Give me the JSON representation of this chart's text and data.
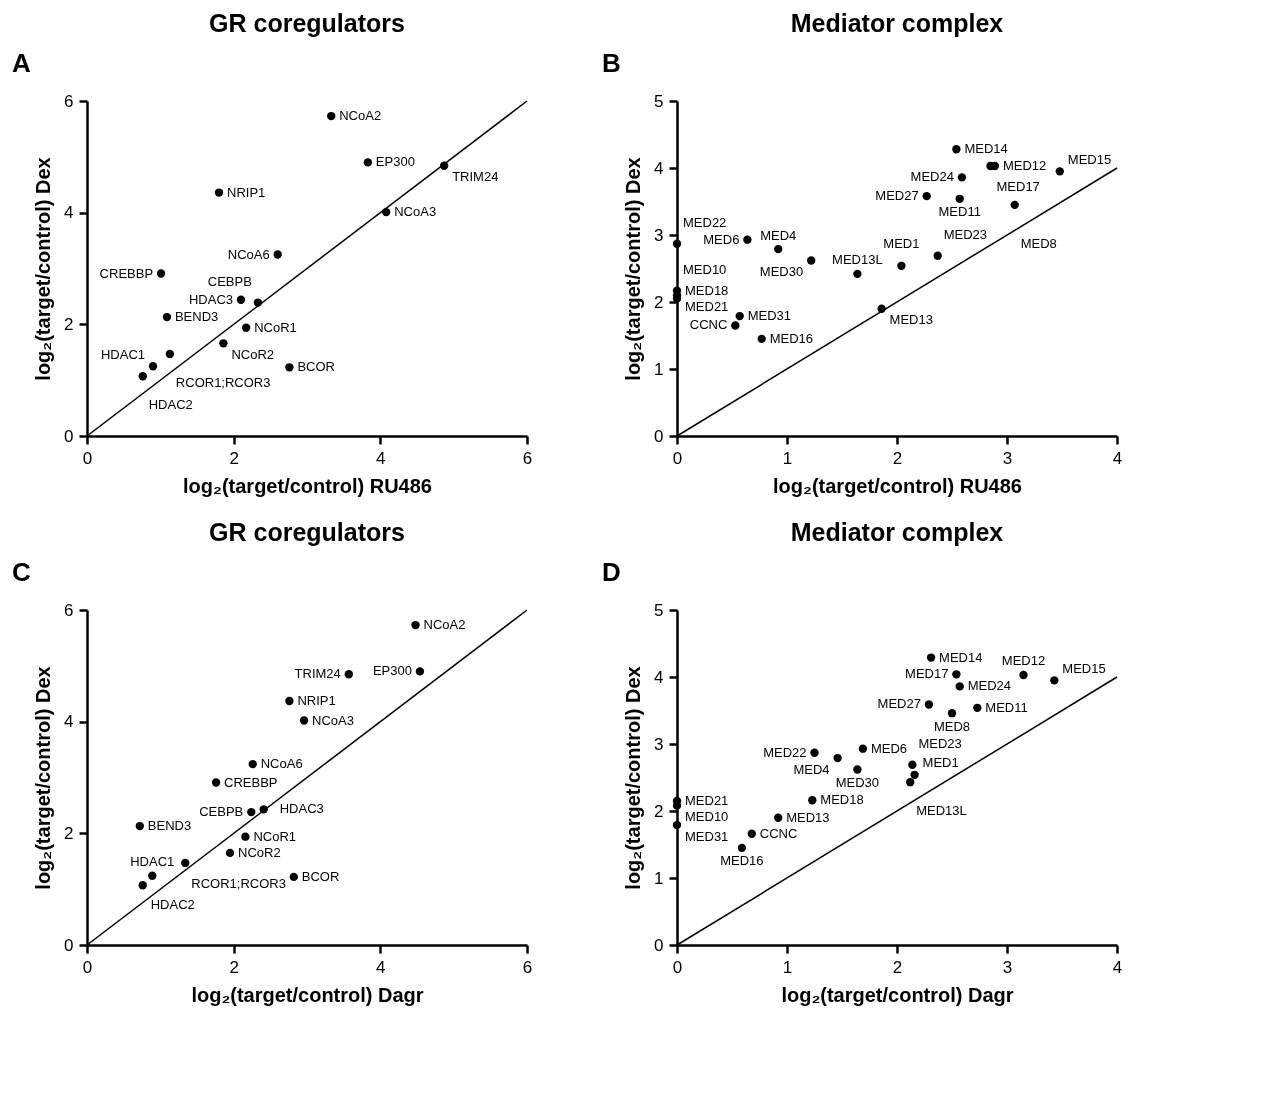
{
  "chart_data": [
    {
      "type": "scatter",
      "title": "GR coregulators",
      "annotations": [
        "A"
      ],
      "xlabel": "log₂(target/control) RU486",
      "ylabel": "log₂(target/control) Dex",
      "xlim": [
        0,
        6
      ],
      "ylim": [
        0,
        6
      ],
      "xticks": [
        0,
        2,
        4,
        6
      ],
      "yticks": [
        0,
        2,
        4,
        6
      ],
      "marker": "circle",
      "series": [
        {
          "color": "#000000",
          "x": [
            3.33,
            3.83,
            4.87,
            1.8,
            4.08,
            2.6,
            1.01,
            2.1,
            2.33,
            1.09,
            2.17,
            1.86,
            1.13,
            0.9,
            0.76,
            2.76
          ],
          "values": [
            5.73,
            4.9,
            4.84,
            4.36,
            4.01,
            3.25,
            2.91,
            2.44,
            2.39,
            2.13,
            1.94,
            1.66,
            1.47,
            1.25,
            1.07,
            1.23
          ],
          "value_labels": [
            "NCoA2",
            "EP300",
            "TRIM24",
            "NRIP1",
            "NCoA3",
            "NCoA6",
            "CREBBP",
            "HDAC3",
            "CEBPB",
            "BEND3",
            "NCoR1",
            "NCoR2",
            "RCOR1;RCOR3",
            "HDAC1",
            "HDAC2",
            "BCOR"
          ]
        },
        {
          "type": "line",
          "marker": "none",
          "color": "#000000",
          "x": [
            0,
            6
          ],
          "values": [
            0,
            6
          ]
        }
      ]
    },
    {
      "type": "scatter",
      "title": "Mediator complex",
      "annotations": [
        "B"
      ],
      "xlabel": "log₂(target/control) RU486",
      "ylabel": "log₂(target/control) Dex",
      "xlim": [
        0,
        4
      ],
      "ylim": [
        0,
        5
      ],
      "xticks": [
        0,
        1,
        2,
        3,
        4
      ],
      "yticks": [
        0,
        1,
        2,
        3,
        4,
        5
      ],
      "marker": "circle",
      "series": [
        {
          "color": "#000000",
          "x": [
            2.54,
            2.85,
            2.89,
            3.48,
            2.59,
            2.27,
            2.57,
            3.07,
            0,
            0.64,
            0.92,
            1.22,
            1.64,
            2.04,
            2.37,
            0,
            0,
            0,
            0.57,
            0.53,
            1.86,
            0.77
          ],
          "values": [
            4.28,
            4.03,
            4.03,
            3.95,
            3.86,
            3.58,
            3.54,
            3.45,
            2.87,
            2.93,
            2.79,
            2.62,
            2.42,
            2.54,
            2.69,
            2.17,
            2.1,
            2.05,
            1.79,
            1.65,
            1.9,
            1.45
          ],
          "value_labels": [
            "MED14",
            "MED17",
            "MED12",
            "MED15",
            "MED24",
            "MED27",
            "MED11",
            "MED8",
            "MED22",
            "MED6",
            "MED4",
            "MED30",
            "MED13L",
            "MED1",
            "MED23",
            "MED18",
            "MED21",
            "MED10",
            "MED31",
            "CCNC",
            "MED13",
            "MED16"
          ]
        },
        {
          "type": "line",
          "marker": "none",
          "color": "#000000",
          "x": [
            0,
            4
          ],
          "values": [
            0,
            4
          ]
        }
      ]
    },
    {
      "type": "scatter",
      "title": "GR coregulators",
      "annotations": [
        "C"
      ],
      "xlabel": "log₂(target/control) Dagr",
      "ylabel": "log₂(target/control) Dex",
      "xlim": [
        0,
        6
      ],
      "ylim": [
        0,
        6
      ],
      "xticks": [
        0,
        2,
        4,
        6
      ],
      "yticks": [
        0,
        2,
        4,
        6
      ],
      "marker": "circle",
      "series": [
        {
          "color": "#000000",
          "x": [
            4.48,
            4.54,
            3.57,
            2.76,
            2.96,
            2.26,
            1.76,
            2.24,
            2.41,
            0.72,
            2.16,
            1.95,
            1.34,
            0.89,
            0.76,
            2.82
          ],
          "values": [
            5.73,
            4.9,
            4.85,
            4.37,
            4.02,
            3.24,
            2.91,
            2.38,
            2.43,
            2.13,
            1.94,
            1.65,
            1.47,
            1.24,
            1.07,
            1.22
          ],
          "value_labels": [
            "NCoA2",
            "EP300",
            "TRIM24",
            "NRIP1",
            "NCoA3",
            "NCoA6",
            "CREBBP",
            "CEBPB",
            "HDAC3",
            "BEND3",
            "NCoR1",
            "NCoR2",
            "RCOR1;RCOR3",
            "HDAC1",
            "HDAC2",
            "BCOR"
          ]
        },
        {
          "type": "line",
          "marker": "none",
          "color": "#000000",
          "x": [
            0,
            6
          ],
          "values": [
            0,
            6
          ]
        }
      ]
    },
    {
      "type": "scatter",
      "title": "Mediator complex",
      "annotations": [
        "D"
      ],
      "xlabel": "log₂(target/control) Dagr",
      "ylabel": "log₂(target/control) Dex",
      "xlim": [
        0,
        4
      ],
      "ylim": [
        0,
        5
      ],
      "xticks": [
        0,
        1,
        2,
        3,
        4
      ],
      "yticks": [
        0,
        1,
        2,
        3,
        4,
        5
      ],
      "marker": "circle",
      "series": [
        {
          "color": "#000000",
          "x": [
            2.31,
            2.54,
            3.15,
            3.43,
            2.57,
            2.29,
            2.73,
            2.5,
            1.25,
            1.46,
            1.64,
            1.69,
            2.12,
            2.16,
            2.14,
            1.23,
            0,
            0,
            0,
            0.68,
            0.92,
            0.59
          ],
          "values": [
            4.29,
            4.04,
            4.03,
            3.95,
            3.86,
            3.59,
            3.54,
            3.46,
            2.87,
            2.79,
            2.62,
            2.93,
            2.43,
            2.54,
            2.69,
            2.16,
            2.15,
            2.08,
            1.79,
            1.66,
            1.9,
            1.45
          ],
          "value_labels": [
            "MED14",
            "MED17",
            "MED12",
            "MED15",
            "MED24",
            "MED27",
            "MED11",
            "MED8",
            "MED22",
            "MED4",
            "MED30",
            "MED6",
            "MED13L",
            "MED1",
            "MED23",
            "MED18",
            "MED21",
            "MED10",
            "MED31",
            "CCNC",
            "MED13",
            "MED16"
          ]
        },
        {
          "type": "line",
          "marker": "none",
          "color": "#000000",
          "x": [
            0,
            4
          ],
          "values": [
            0,
            4
          ]
        }
      ]
    }
  ]
}
